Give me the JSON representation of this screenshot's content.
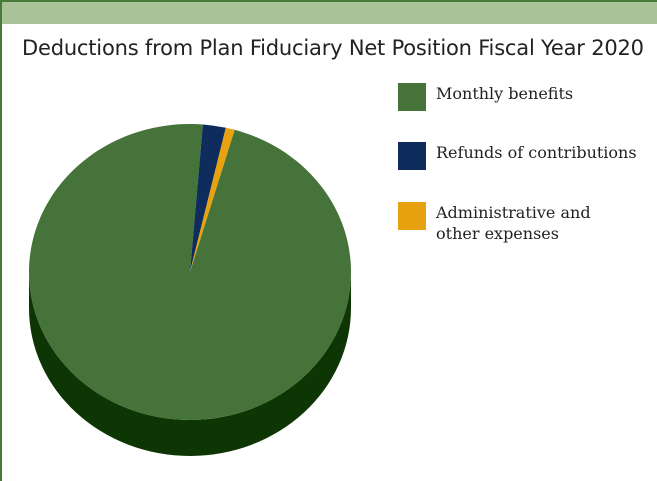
{
  "chart_data": {
    "type": "pie",
    "title": "Deductions from Plan Fiduciary Net Position Fiscal Year 2020",
    "three_d": true,
    "legend_position": "right",
    "slices": [
      {
        "label": "Monthly benefits",
        "value": 96.8,
        "color": "#45733a",
        "side_color": "#0e3605"
      },
      {
        "label": "Refunds of contributions",
        "value": 2.3,
        "color": "#0f2d5c",
        "side_color": "#07183a"
      },
      {
        "label": "Administrative and other expenses",
        "value": 0.9,
        "color": "#e8a20f",
        "side_color": "#9b6a08"
      }
    ]
  }
}
